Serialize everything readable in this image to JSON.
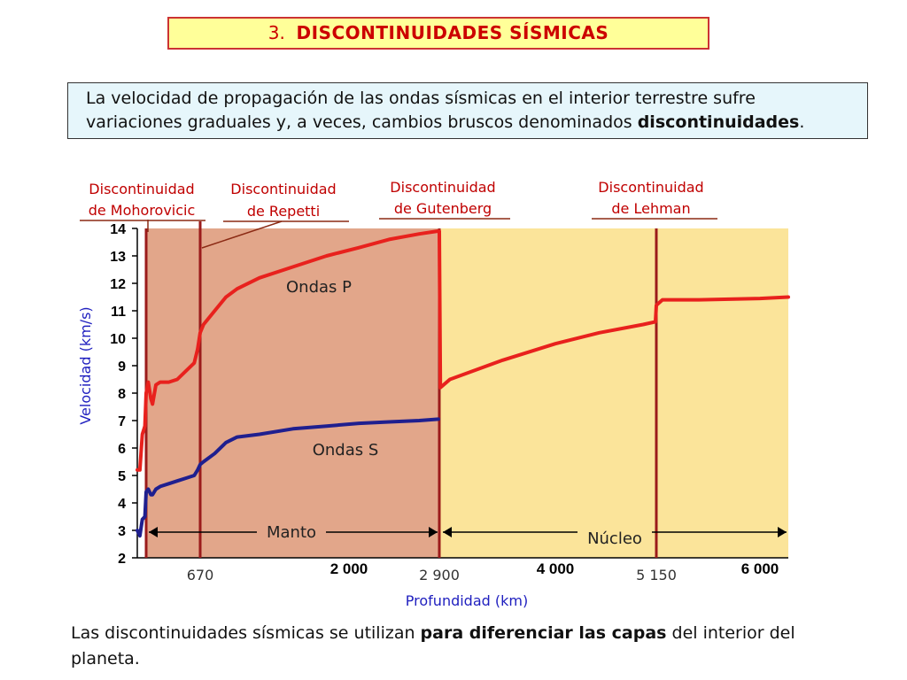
{
  "slide": {
    "title_number": "3.",
    "title_text": "DISCONTINUIDADES SÍSMICAS",
    "intro_part1": "La velocidad de propagación de las ondas sísmicas en el interior terrestre sufre variaciones graduales y, a veces, cambios bruscos denominados ",
    "intro_bold": "discontinuidades",
    "intro_end": ".",
    "footer_part1": "Las discontinuidades sísmicas se utilizan ",
    "footer_bold": "para diferenciar las capas",
    "footer_part2": " del interior del planeta."
  },
  "colors": {
    "mantle_fill": "#e2a68a",
    "core_fill": "#fbe49a",
    "p_wave": "#e8211d",
    "s_wave": "#1f1f8f",
    "discontinuity": "#9b1b1b",
    "label_red": "#c00000",
    "axis_title_blue": "#1f1fbf"
  },
  "chart_data": {
    "type": "line",
    "xlabel": "Profundidad (km)",
    "ylabel": "Velocidad (km/s)",
    "xlim": [
      0,
      6371
    ],
    "ylim": [
      2,
      14
    ],
    "yticks": [
      "2",
      "3",
      "4",
      "5",
      "6",
      "7",
      "8",
      "9",
      "10",
      "11",
      "12",
      "13",
      "14"
    ],
    "xticks": [
      {
        "value": 670,
        "label": "670",
        "bold": false
      },
      {
        "value": 2000,
        "label": "2 000",
        "bold": true
      },
      {
        "value": 2900,
        "label": "2 900",
        "bold": false
      },
      {
        "value": 4000,
        "label": "4 000",
        "bold": true
      },
      {
        "value": 5150,
        "label": "5 150",
        "bold": false
      },
      {
        "value": 6000,
        "label": "6 000",
        "bold": true
      }
    ],
    "regions": [
      {
        "name": "Manto",
        "from": 35,
        "to": 2900
      },
      {
        "name": "Núcleo",
        "from": 2900,
        "to": 6371
      }
    ],
    "discontinuities": [
      {
        "label1": "Discontinuidad",
        "label2": "de Mohorovicic",
        "depth": 35
      },
      {
        "label1": "Discontinuidad",
        "label2": "de Repetti",
        "depth": 670
      },
      {
        "label1": "Discontinuidad",
        "label2": "de Gutenberg",
        "depth": 2900
      },
      {
        "label1": "Discontinuidad",
        "label2": "de Lehman",
        "depth": 5150
      }
    ],
    "series": [
      {
        "name": "Ondas P",
        "x": [
          0,
          10,
          20,
          30,
          35,
          60,
          90,
          110,
          150,
          200,
          300,
          400,
          500,
          600,
          640,
          670,
          700,
          800,
          900,
          1000,
          1200,
          1500,
          1800,
          2100,
          2400,
          2700,
          2880,
          2900,
          2910,
          3000,
          3500,
          4000,
          4500,
          5000,
          5140,
          5150,
          5200,
          5500,
          6000,
          6371
        ],
        "y": [
          5.2,
          5.2,
          6.5,
          6.8,
          8.0,
          8.4,
          7.8,
          7.6,
          8.3,
          8.4,
          8.4,
          8.5,
          8.8,
          9.1,
          9.6,
          10.2,
          10.5,
          11.0,
          11.5,
          11.8,
          12.2,
          12.6,
          13.0,
          13.3,
          13.6,
          13.8,
          13.9,
          13.9,
          8.2,
          8.5,
          9.2,
          9.8,
          10.2,
          10.5,
          10.6,
          11.2,
          11.4,
          11.4,
          11.45,
          11.5
        ]
      },
      {
        "name": "Ondas S",
        "x": [
          0,
          10,
          20,
          30,
          35,
          60,
          90,
          110,
          150,
          200,
          300,
          400,
          500,
          600,
          640,
          670,
          700,
          800,
          900,
          1000,
          1200,
          1500,
          1800,
          2100,
          2400,
          2700,
          2890
        ],
        "y": [
          3.0,
          2.8,
          3.4,
          3.5,
          4.4,
          4.5,
          4.3,
          4.3,
          4.5,
          4.6,
          4.7,
          4.8,
          4.9,
          5.0,
          5.2,
          5.4,
          5.5,
          5.8,
          6.2,
          6.4,
          6.5,
          6.7,
          6.8,
          6.9,
          6.95,
          7.0,
          7.05
        ]
      }
    ],
    "annotations": [
      {
        "text": "Ondas P"
      },
      {
        "text": "Ondas S"
      },
      {
        "text": "Manto"
      },
      {
        "text": "Núcleo"
      }
    ]
  }
}
